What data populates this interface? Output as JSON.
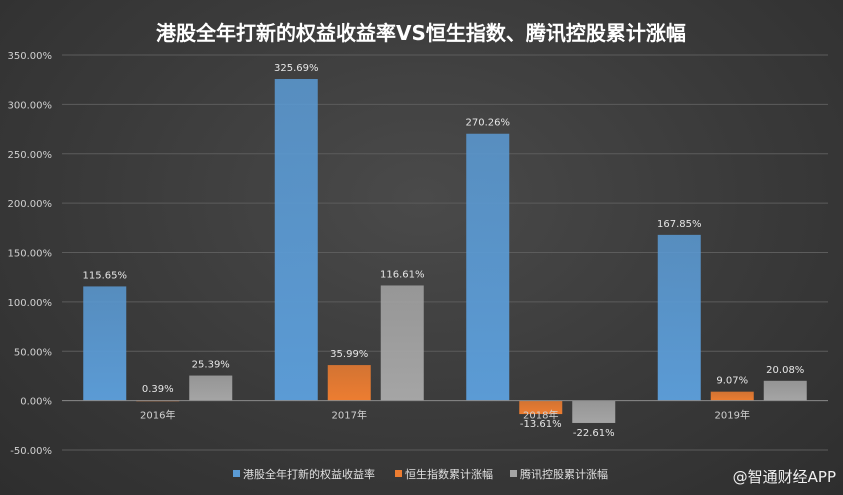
{
  "chart_data": {
    "type": "bar",
    "title": "港股全年打新的权益收益率VS恒生指数、腾讯控股累计涨幅",
    "categories": [
      "2016年",
      "2017年",
      "2018年",
      "2019年"
    ],
    "series": [
      {
        "name": "港股全年打新的权益收益率",
        "color": "#5b9bd5",
        "values": [
          115.65,
          325.69,
          270.26,
          167.85
        ],
        "labels": [
          "115.65%",
          "325.69%",
          "270.26%",
          "167.85%"
        ]
      },
      {
        "name": "恒生指数累计涨幅",
        "color": "#ed7d31",
        "values": [
          0.39,
          35.99,
          -13.61,
          9.07
        ],
        "labels": [
          "0.39%",
          "35.99%",
          "-13.61%",
          "9.07%"
        ]
      },
      {
        "name": "腾讯控股累计涨幅",
        "color": "#a5a5a5",
        "values": [
          25.39,
          116.61,
          -22.61,
          20.08
        ],
        "labels": [
          "25.39%",
          "116.61%",
          "-22.61%",
          "20.08%"
        ]
      }
    ],
    "ylim": [
      -50,
      350
    ],
    "yticks": [
      -50,
      0,
      50,
      100,
      150,
      200,
      250,
      300,
      350
    ],
    "ytick_labels": [
      "-50.00%",
      "0.00%",
      "50.00%",
      "100.00%",
      "150.00%",
      "200.00%",
      "250.00%",
      "300.00%",
      "350.00%"
    ],
    "grid": true,
    "legend_position": "bottom"
  },
  "watermark": "@智通财经APP"
}
